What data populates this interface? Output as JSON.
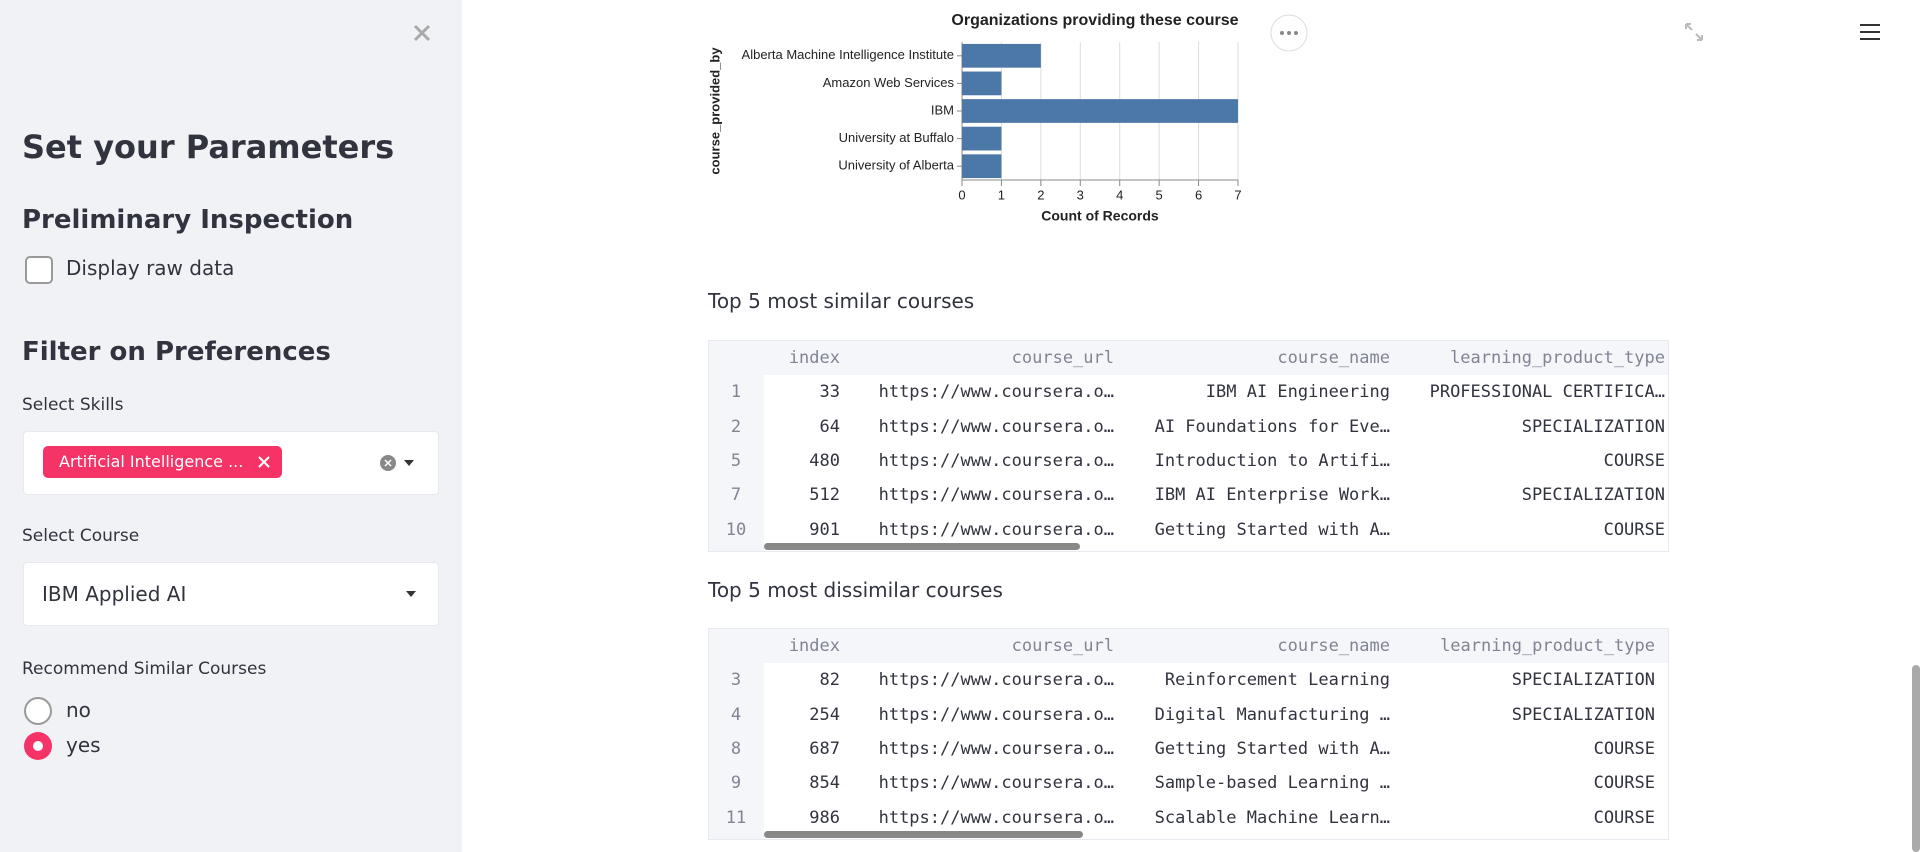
{
  "sidebar": {
    "title": "Set your Parameters",
    "section1": "Preliminary Inspection",
    "checkbox_label": "Display raw data",
    "section2": "Filter on Preferences",
    "skills_label": "Select Skills",
    "skills_tag": "Artificial Intelligence ...",
    "course_label": "Select Course",
    "course_value": "IBM Applied AI",
    "recommend_label": "Recommend Similar Courses",
    "options": [
      "no",
      "yes"
    ]
  },
  "chart_data": {
    "type": "bar",
    "orientation": "horizontal",
    "title": "Organizations providing these course",
    "y_label": "course_provided_by",
    "x_label": "Count of Records",
    "categories": [
      "Alberta Machine Intelligence Institute",
      "Amazon Web Services",
      "IBM",
      "University at Buffalo",
      "University of Alberta"
    ],
    "values": [
      2,
      1,
      7,
      1,
      1
    ],
    "color": "#4c78a8",
    "xlim": [
      0,
      7
    ],
    "xticks": [
      0,
      1,
      2,
      3,
      4,
      5,
      6,
      7
    ],
    "grid": true
  },
  "tables": [
    {
      "title": "Top 5 most similar courses",
      "columns": [
        "index",
        "course_url",
        "course_name",
        "learning_product_type"
      ],
      "rows": [
        [
          1,
          33,
          "https://www.coursera.o…",
          "IBM AI Engineering",
          "PROFESSIONAL CERTIFICA…"
        ],
        [
          2,
          64,
          "https://www.coursera.o…",
          "AI Foundations for Eve…",
          "SPECIALIZATION"
        ],
        [
          5,
          480,
          "https://www.coursera.o…",
          "Introduction to Artifi…",
          "COURSE"
        ],
        [
          7,
          512,
          "https://www.coursera.o…",
          "IBM AI Enterprise Work…",
          "SPECIALIZATION"
        ],
        [
          10,
          901,
          "https://www.coursera.o…",
          "Getting Started with A…",
          "COURSE"
        ]
      ]
    },
    {
      "title": "Top 5 most dissimilar courses",
      "columns": [
        "index",
        "course_url",
        "course_name",
        "learning_product_type"
      ],
      "rows": [
        [
          3,
          82,
          "https://www.coursera.o…",
          "Reinforcement Learning",
          "SPECIALIZATION"
        ],
        [
          4,
          254,
          "https://www.coursera.o…",
          "Digital Manufacturing …",
          "SPECIALIZATION"
        ],
        [
          8,
          687,
          "https://www.coursera.o…",
          "Getting Started with A…",
          "COURSE"
        ],
        [
          9,
          854,
          "https://www.coursera.o…",
          "Sample-based Learning …",
          "COURSE"
        ],
        [
          11,
          986,
          "https://www.coursera.o…",
          "Scalable Machine Learn…",
          "COURSE"
        ]
      ]
    }
  ]
}
